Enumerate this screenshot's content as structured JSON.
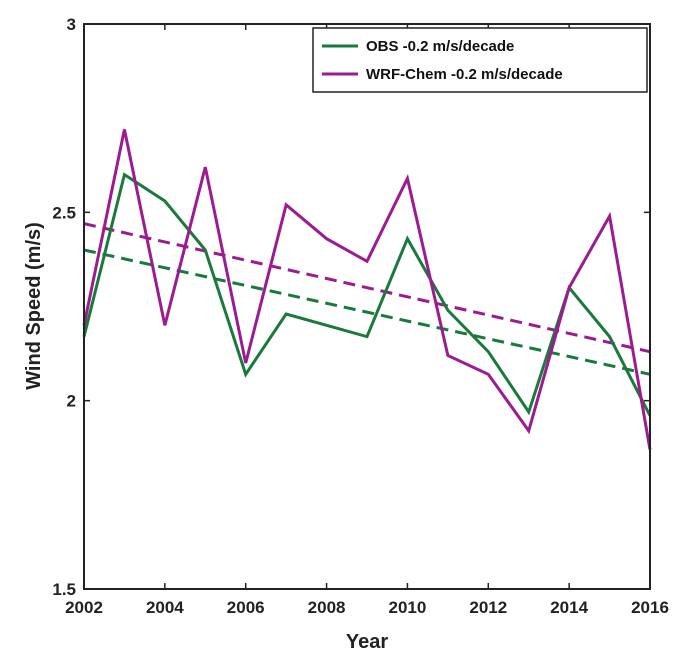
{
  "chart_data": {
    "type": "line",
    "title": "",
    "xlabel": "Year",
    "ylabel": "Wind Speed (m/s)",
    "xlim": [
      2002,
      2016
    ],
    "ylim": [
      1.5,
      3
    ],
    "xticks": [
      "2002",
      "2004",
      "2006",
      "2008",
      "2010",
      "2012",
      "2014",
      "2016"
    ],
    "yticks": [
      "1.5",
      "2",
      "2.5",
      "3"
    ],
    "grid": false,
    "legend_position": "top-right",
    "x": [
      2002,
      2003,
      2004,
      2005,
      2006,
      2007,
      2008,
      2009,
      2010,
      2011,
      2012,
      2013,
      2014,
      2015,
      2016
    ],
    "series": [
      {
        "name": "OBS -0.2 m/s/decade",
        "color": "#1a7a3c",
        "values": [
          2.17,
          2.6,
          2.53,
          2.4,
          2.07,
          2.23,
          2.2,
          2.17,
          2.43,
          2.24,
          2.13,
          1.97,
          2.3,
          2.17,
          1.96
        ],
        "trend": [
          2.4,
          2.07
        ]
      },
      {
        "name": "WRF-Chem -0.2 m/s/decade",
        "color": "#9c1b90",
        "values": [
          2.2,
          2.72,
          2.2,
          2.62,
          2.1,
          2.52,
          2.43,
          2.37,
          2.59,
          2.12,
          2.07,
          1.92,
          2.3,
          2.49,
          1.87
        ],
        "trend": [
          2.47,
          2.13
        ]
      }
    ]
  }
}
